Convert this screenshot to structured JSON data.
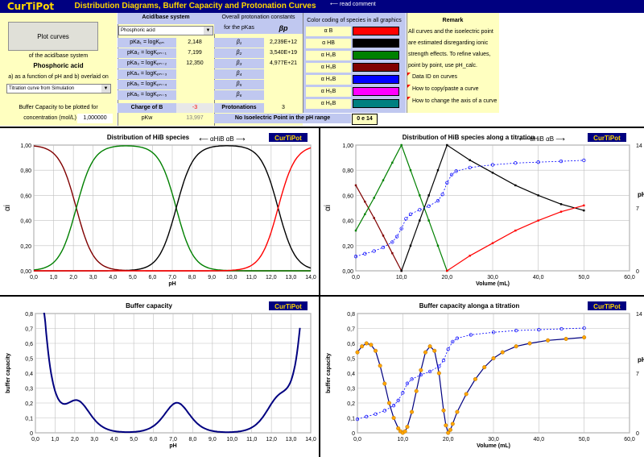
{
  "app": {
    "logo": "CurTiPot",
    "title": "Distribution Diagrams, Buffer Capacity and Protonation Curves",
    "read_comment": "⟵ read comment"
  },
  "left": {
    "plot_button": "Plot curves",
    "of_system": "of the acid/base system",
    "acid_name": "Phosphoric acid",
    "as_function": "a) as a function of pH and b) overlaid on",
    "dropdown_value": "Titration curve from Simulation",
    "buffer_label": "Buffer Capacity to be plotted for",
    "conc_label": "concentration (mol/L)",
    "conc_value": "1,000000"
  },
  "acid": {
    "header": "Acid/base system",
    "dropdown_value": "Phosphoric acid",
    "rows": [
      {
        "label": "pKa₁ = logKₚₙ",
        "value": "2,148"
      },
      {
        "label": "pKa₂ = logKₚₙ₋₁",
        "value": "7,199"
      },
      {
        "label": "pKa₃ = logKₚₙ₋₂",
        "value": "12,350"
      },
      {
        "label": "pKa₄ = logKₚₙ₋₃",
        "value": ""
      },
      {
        "label": "pKa₅ = logKₚₙ₋₄",
        "value": ""
      },
      {
        "label": "pKa₆ = logKₚₙ₋₅",
        "value": ""
      }
    ],
    "charge_label": "Charge of B",
    "charge_value": "-3",
    "pkw_label": "pKw",
    "pkw_value": "13,997"
  },
  "overall": {
    "header1": "Overall protonation constants",
    "header2": "for the pKas",
    "beta_header": "βp",
    "rows": [
      {
        "label": "β₁",
        "value": "2,239E+12"
      },
      {
        "label": "β₂",
        "value": "3,540E+19"
      },
      {
        "label": "β₃",
        "value": "4,977E+21"
      },
      {
        "label": "β₄",
        "value": ""
      },
      {
        "label": "β₅",
        "value": ""
      },
      {
        "label": "β₆",
        "value": ""
      }
    ],
    "protonations_label": "Protonations",
    "protonations_value": "3"
  },
  "colors": {
    "header": "Color coding of species in all graphics",
    "rows": [
      {
        "label": "α B",
        "color": "#FF0000"
      },
      {
        "label": "α HB",
        "color": "#000000"
      },
      {
        "label": "α H₂B",
        "color": "#008000"
      },
      {
        "label": "α H₃B",
        "color": "#800000"
      },
      {
        "label": "α H₄B",
        "color": "#0000FF"
      },
      {
        "label": "α H₅B",
        "color": "#FF00FF"
      },
      {
        "label": "α H₆B",
        "color": "#008080"
      }
    ]
  },
  "isoelectric": {
    "text": "No Isoelectric Point in the pH range",
    "range": "0 e 14"
  },
  "remark": {
    "title": "Remark",
    "lines": [
      "All curves and the isoelectric point",
      "are estimated disregarding ionic",
      "strength effects. To refine values,",
      "point by point, use pH_calc."
    ],
    "links": [
      "Data ID on curves",
      "How to copy/paste a curve",
      "How to change the axis of a curve"
    ]
  },
  "chart_data": [
    {
      "type": "line",
      "title": "Distribution of HiB species",
      "badge": "CurTiPot",
      "ylabel": "αi",
      "xlabel": "pH",
      "annotation": "⟵ αHiB αB ⟶",
      "xlim": [
        0,
        14
      ],
      "ylim": [
        0,
        1
      ],
      "xticks": [
        "0,0",
        "1,0",
        "2,0",
        "3,0",
        "4,0",
        "5,0",
        "6,0",
        "7,0",
        "8,0",
        "9,0",
        "10,0",
        "11,0",
        "12,0",
        "13,0",
        "14,0"
      ],
      "yticks": [
        "0,00",
        "0,20",
        "0,40",
        "0,60",
        "0,80",
        "1,00"
      ],
      "pKa": [
        2.148,
        7.199,
        12.35
      ]
    },
    {
      "type": "line",
      "title": "Distribution of HiB species along a titration",
      "badge": "CurTiPot",
      "ylabel": "αi",
      "xlabel": "Volume (mL)",
      "y2label": "pH",
      "annotation": "⟵ αHiB αB ⟶",
      "xlim": [
        0,
        60
      ],
      "ylim": [
        0,
        1
      ],
      "y2lim": [
        0,
        14
      ],
      "xticks": [
        "0,0",
        "10,0",
        "20,0",
        "30,0",
        "40,0",
        "50,0",
        "60,0"
      ],
      "yticks": [
        "0,00",
        "0,20",
        "0,40",
        "0,60",
        "0,80",
        "1,00"
      ],
      "y2ticks": [
        "0",
        "7",
        "14"
      ],
      "series": [
        {
          "name": "α H₃B",
          "color": "#800000",
          "x": [
            0,
            2,
            4,
            6,
            8,
            10
          ],
          "y": [
            0.68,
            0.55,
            0.42,
            0.28,
            0.14,
            0.0
          ]
        },
        {
          "name": "α H₂B",
          "color": "#008000",
          "x": [
            0,
            2,
            4,
            6,
            8,
            10,
            12,
            14,
            16,
            18,
            20
          ],
          "y": [
            0.32,
            0.45,
            0.58,
            0.72,
            0.86,
            1.0,
            0.8,
            0.6,
            0.4,
            0.2,
            0.0
          ]
        },
        {
          "name": "α HB",
          "color": "#000000",
          "x": [
            10,
            12,
            14,
            16,
            18,
            20,
            25,
            30,
            35,
            40,
            45,
            50
          ],
          "y": [
            0.0,
            0.2,
            0.4,
            0.6,
            0.8,
            1.0,
            0.88,
            0.78,
            0.68,
            0.6,
            0.53,
            0.48
          ]
        },
        {
          "name": "α B",
          "color": "#FF0000",
          "x": [
            20,
            25,
            30,
            35,
            40,
            45,
            50
          ],
          "y": [
            0.0,
            0.12,
            0.22,
            0.32,
            0.4,
            0.47,
            0.52
          ]
        },
        {
          "name": "pH",
          "color": "#0000FF",
          "x": [
            0,
            2,
            4,
            6,
            8,
            9,
            10,
            11,
            12,
            14,
            16,
            18,
            19,
            20,
            21,
            22,
            25,
            30,
            35,
            40,
            45,
            50
          ],
          "y": [
            1.6,
            1.9,
            2.2,
            2.6,
            3.2,
            3.8,
            4.7,
            5.8,
            6.3,
            6.8,
            7.2,
            7.8,
            8.5,
            9.8,
            10.7,
            11.1,
            11.5,
            11.8,
            12.0,
            12.1,
            12.2,
            12.3
          ]
        }
      ]
    },
    {
      "type": "line",
      "title": "Buffer capacity",
      "badge": "CurTiPot",
      "ylabel": "buffer capacity",
      "xlabel": "pH",
      "xlim": [
        0,
        14
      ],
      "ylim": [
        0,
        0.8
      ],
      "xticks": [
        "0,0",
        "1,0",
        "2,0",
        "3,0",
        "4,0",
        "5,0",
        "6,0",
        "7,0",
        "8,0",
        "9,0",
        "10,0",
        "11,0",
        "12,0",
        "13,0",
        "14,0"
      ],
      "yticks": [
        "0",
        "0,1",
        "0,2",
        "0,3",
        "0,4",
        "0,5",
        "0,6",
        "0,7",
        "0,8"
      ]
    },
    {
      "type": "line",
      "title": "Buffer capacity alonga a titration",
      "badge": "CurTiPot",
      "ylabel": "buffer capacity",
      "xlabel": "Volume (mL)",
      "y2label": "pH",
      "xlim": [
        0,
        60
      ],
      "ylim": [
        0,
        0.8
      ],
      "y2lim": [
        0,
        14
      ],
      "xticks": [
        "0,0",
        "10,0",
        "20,0",
        "30,0",
        "40,0",
        "50,0",
        "60,0"
      ],
      "yticks": [
        "0",
        "0,1",
        "0,2",
        "0,3",
        "0,4",
        "0,5",
        "0,6",
        "0,7",
        "0,8"
      ],
      "y2ticks": [
        "0",
        "7",
        "14"
      ],
      "series": [
        {
          "name": "buffer capacity",
          "color": "#000080",
          "x": [
            0,
            1,
            2,
            3,
            4,
            5,
            6,
            7,
            8,
            9,
            9.5,
            10,
            10.5,
            11,
            12,
            13,
            14,
            15,
            16,
            17,
            18,
            19,
            19.5,
            20,
            20.5,
            21,
            22,
            24,
            26,
            28,
            30,
            32,
            35,
            38,
            42,
            46,
            50
          ],
          "y": [
            0.54,
            0.58,
            0.6,
            0.59,
            0.55,
            0.45,
            0.33,
            0.2,
            0.1,
            0.03,
            0.01,
            0.0,
            0.01,
            0.04,
            0.14,
            0.28,
            0.42,
            0.54,
            0.58,
            0.55,
            0.4,
            0.15,
            0.05,
            0.0,
            0.02,
            0.06,
            0.14,
            0.26,
            0.36,
            0.44,
            0.5,
            0.54,
            0.58,
            0.6,
            0.62,
            0.63,
            0.64
          ]
        },
        {
          "name": "pH",
          "color": "#0000FF",
          "x": [
            0,
            2,
            4,
            6,
            8,
            9,
            10,
            11,
            12,
            14,
            16,
            18,
            19,
            20,
            21,
            22,
            25,
            30,
            35,
            40,
            45,
            50
          ],
          "y": [
            1.6,
            1.9,
            2.2,
            2.6,
            3.2,
            3.8,
            4.7,
            5.8,
            6.3,
            6.8,
            7.2,
            7.8,
            8.5,
            9.8,
            10.7,
            11.1,
            11.5,
            11.8,
            12.0,
            12.1,
            12.2,
            12.3
          ]
        }
      ]
    }
  ]
}
